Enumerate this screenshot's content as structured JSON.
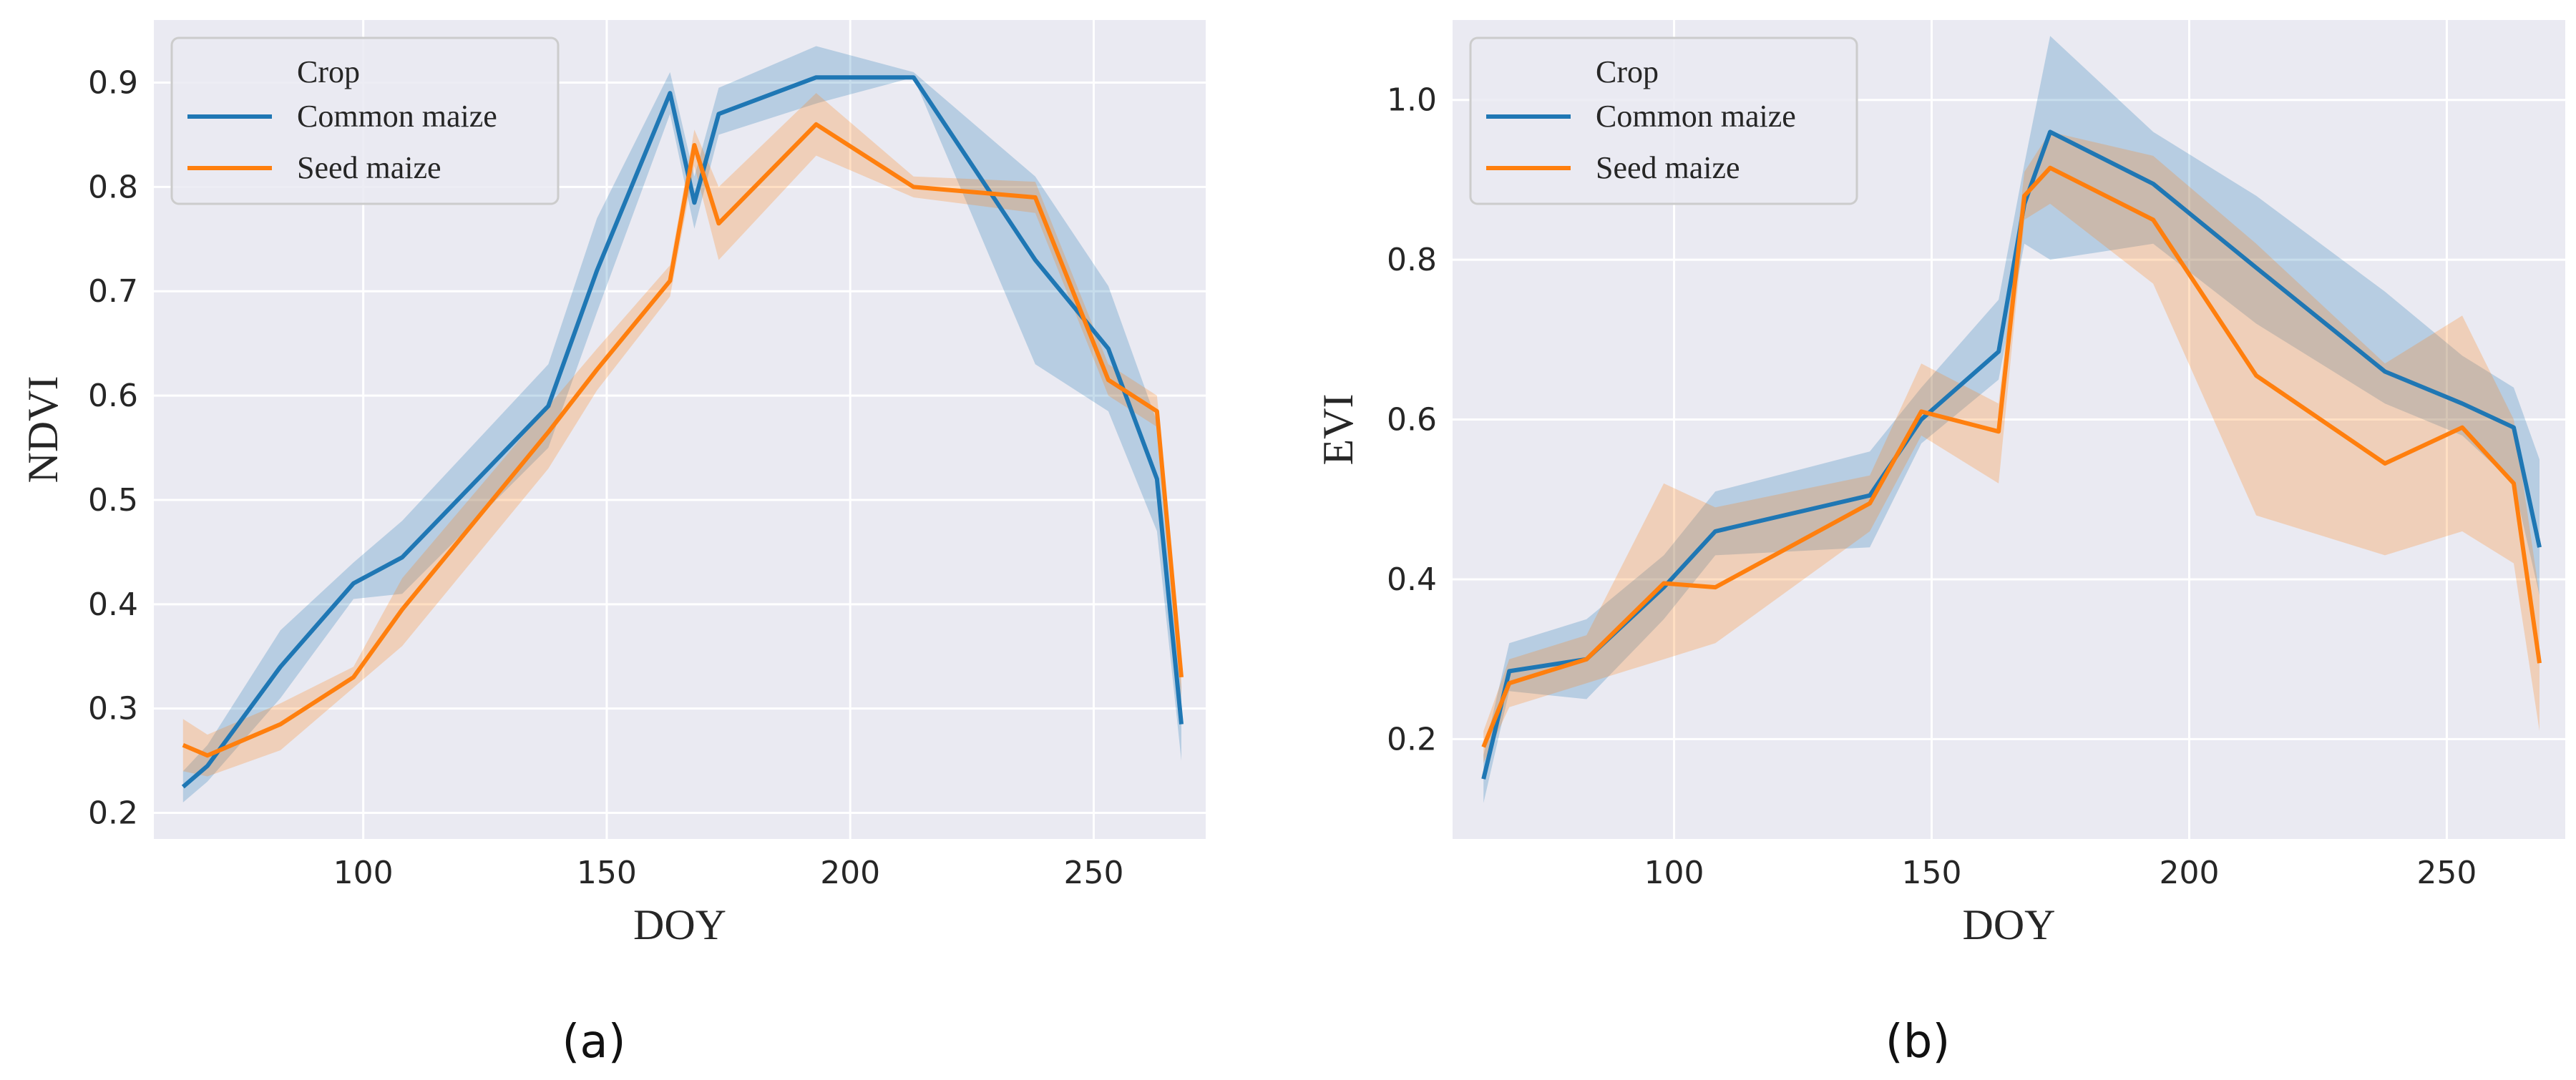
{
  "chart_data": [
    {
      "type": "line",
      "panel": "a",
      "caption": "(a)",
      "xlabel": "DOY",
      "ylabel": "NDVI",
      "xlim": [
        57,
        273
      ],
      "ylim": [
        0.175,
        0.96
      ],
      "xticks": [
        100,
        150,
        200,
        250
      ],
      "yticks": [
        0.2,
        0.3,
        0.4,
        0.5,
        0.6,
        0.7,
        0.8,
        0.9
      ],
      "ytick_labels": [
        "0.2",
        "0.3",
        "0.4",
        "0.5",
        "0.6",
        "0.7",
        "0.8",
        "0.9"
      ],
      "grid": true,
      "legend": {
        "title": "Crop",
        "location": "top-left"
      },
      "series": [
        {
          "name": "Common maize",
          "color": "#1f77b4",
          "x": [
            63,
            68,
            83,
            98,
            108,
            138,
            148,
            163,
            168,
            173,
            193,
            213,
            238,
            253,
            263,
            268
          ],
          "values": [
            0.225,
            0.245,
            0.34,
            0.42,
            0.445,
            0.59,
            0.72,
            0.89,
            0.785,
            0.87,
            0.905,
            0.905,
            0.73,
            0.645,
            0.52,
            0.285
          ],
          "lower": [
            0.21,
            0.23,
            0.31,
            0.405,
            0.41,
            0.55,
            0.68,
            0.87,
            0.76,
            0.85,
            0.88,
            0.905,
            0.63,
            0.585,
            0.47,
            0.25
          ],
          "upper": [
            0.24,
            0.265,
            0.375,
            0.44,
            0.48,
            0.63,
            0.77,
            0.91,
            0.81,
            0.895,
            0.935,
            0.91,
            0.81,
            0.705,
            0.575,
            0.32
          ]
        },
        {
          "name": "Seed maize",
          "color": "#ff7f0e",
          "x": [
            63,
            68,
            83,
            98,
            108,
            138,
            148,
            163,
            168,
            173,
            193,
            213,
            238,
            253,
            263,
            268
          ],
          "values": [
            0.265,
            0.255,
            0.285,
            0.33,
            0.395,
            0.565,
            0.625,
            0.71,
            0.84,
            0.765,
            0.86,
            0.8,
            0.79,
            0.615,
            0.585,
            0.33
          ],
          "lower": [
            0.24,
            0.235,
            0.26,
            0.32,
            0.36,
            0.53,
            0.605,
            0.695,
            0.82,
            0.73,
            0.83,
            0.79,
            0.775,
            0.6,
            0.57,
            0.31
          ],
          "upper": [
            0.29,
            0.275,
            0.305,
            0.34,
            0.425,
            0.59,
            0.645,
            0.725,
            0.855,
            0.8,
            0.89,
            0.81,
            0.805,
            0.63,
            0.6,
            0.35
          ]
        }
      ]
    },
    {
      "type": "line",
      "panel": "b",
      "caption": "(b)",
      "xlabel": "DOY",
      "ylabel": "EVI",
      "xlim": [
        57,
        273
      ],
      "ylim": [
        0.075,
        1.1
      ],
      "xticks": [
        100,
        150,
        200,
        250
      ],
      "yticks": [
        0.2,
        0.4,
        0.6,
        0.8,
        1.0
      ],
      "ytick_labels": [
        "0.2",
        "0.4",
        "0.6",
        "0.8",
        "1.0"
      ],
      "grid": true,
      "legend": {
        "title": "Crop",
        "location": "top-left"
      },
      "series": [
        {
          "name": "Common maize",
          "color": "#1f77b4",
          "x": [
            63,
            68,
            83,
            98,
            108,
            138,
            148,
            163,
            168,
            173,
            193,
            213,
            238,
            253,
            263,
            268
          ],
          "values": [
            0.15,
            0.285,
            0.3,
            0.39,
            0.46,
            0.505,
            0.6,
            0.685,
            0.87,
            0.96,
            0.895,
            0.79,
            0.66,
            0.62,
            0.59,
            0.44
          ],
          "lower": [
            0.12,
            0.26,
            0.25,
            0.35,
            0.43,
            0.44,
            0.57,
            0.65,
            0.82,
            0.8,
            0.82,
            0.72,
            0.62,
            0.58,
            0.52,
            0.38
          ],
          "upper": [
            0.18,
            0.32,
            0.35,
            0.43,
            0.51,
            0.56,
            0.64,
            0.75,
            0.92,
            1.08,
            0.96,
            0.88,
            0.76,
            0.68,
            0.64,
            0.55
          ]
        },
        {
          "name": "Seed maize",
          "color": "#ff7f0e",
          "x": [
            63,
            68,
            83,
            98,
            108,
            138,
            148,
            163,
            168,
            173,
            193,
            213,
            238,
            253,
            263,
            268
          ],
          "values": [
            0.19,
            0.27,
            0.3,
            0.395,
            0.39,
            0.495,
            0.61,
            0.585,
            0.88,
            0.915,
            0.85,
            0.655,
            0.545,
            0.59,
            0.52,
            0.295
          ],
          "lower": [
            0.17,
            0.24,
            0.27,
            0.3,
            0.32,
            0.46,
            0.58,
            0.52,
            0.85,
            0.87,
            0.77,
            0.48,
            0.43,
            0.46,
            0.42,
            0.21
          ],
          "upper": [
            0.21,
            0.3,
            0.33,
            0.52,
            0.49,
            0.53,
            0.67,
            0.62,
            0.91,
            0.96,
            0.93,
            0.82,
            0.67,
            0.73,
            0.6,
            0.38
          ]
        }
      ]
    }
  ]
}
